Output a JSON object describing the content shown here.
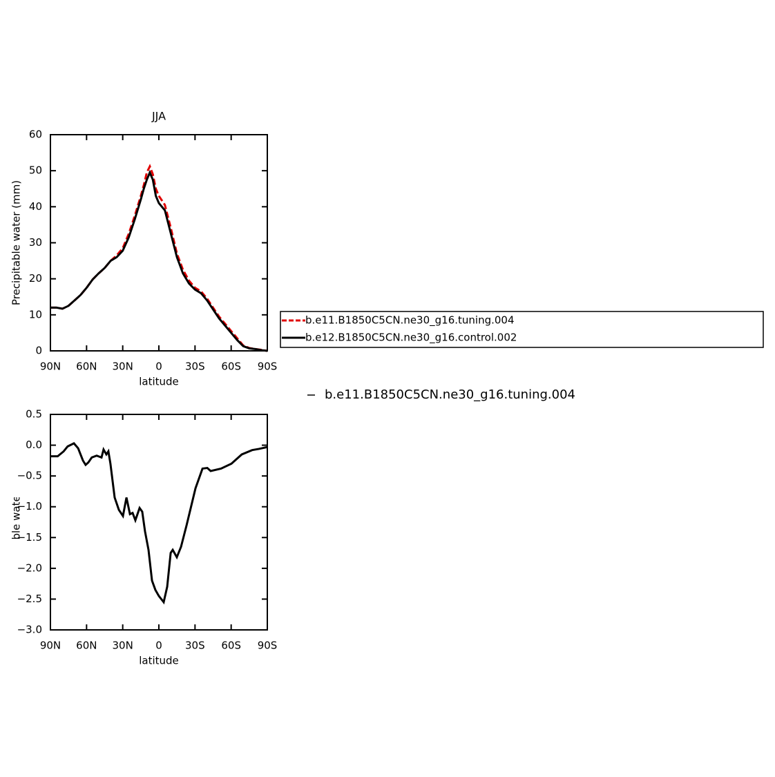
{
  "chart_data": [
    {
      "type": "line",
      "title": "JJA",
      "x_label": "latitude",
      "y_label": "Precipitable water (mm)",
      "x": [
        90,
        85,
        80,
        75,
        70,
        65,
        60,
        55,
        50,
        45,
        40,
        35,
        30,
        25,
        20,
        15,
        12.5,
        10,
        7.5,
        5,
        2.5,
        0,
        -5,
        -10,
        -15,
        -20,
        -25,
        -30,
        -35,
        -40,
        -45,
        -50,
        -55,
        -60,
        -65,
        -70,
        -75,
        -80,
        -85,
        -90
      ],
      "series": [
        {
          "name": "b.e11.B1850C5CN.ne30_g16.tuning.004",
          "color": "#e00000",
          "dashed": true,
          "values": [
            12,
            12,
            11.7,
            12.5,
            14,
            15.5,
            17.5,
            19.8,
            21.5,
            23,
            25,
            26.5,
            28.5,
            32.5,
            37.5,
            43,
            46,
            49.5,
            51.2,
            49,
            45,
            43,
            40.5,
            34,
            27,
            22.5,
            19.5,
            17.5,
            16.5,
            14.5,
            12,
            9.5,
            7.5,
            5.5,
            3.5,
            1.5,
            0.8,
            0.5,
            0.3,
            0
          ]
        },
        {
          "name": "b.e12.B1850C5CN.ne30_g16.control.002",
          "color": "#000000",
          "dashed": false,
          "values": [
            12,
            12,
            11.7,
            12.5,
            14,
            15.5,
            17.5,
            19.8,
            21.5,
            23,
            25,
            26,
            27.8,
            31.5,
            36.5,
            42,
            45,
            47.5,
            49.5,
            47.5,
            43,
            41,
            39,
            32.5,
            26,
            21.5,
            18.7,
            17,
            16,
            14,
            11.5,
            9,
            7,
            5,
            3,
            1.3,
            0.7,
            0.5,
            0.2,
            0
          ]
        }
      ],
      "xlim": [
        90,
        -90
      ],
      "xticks": [
        {
          "value": 90,
          "label": "90N"
        },
        {
          "value": 60,
          "label": "60N"
        },
        {
          "value": 30,
          "label": "30N"
        },
        0,
        {
          "value": -30,
          "label": "30S"
        },
        {
          "value": -60,
          "label": "60S"
        },
        {
          "value": -90,
          "label": "90S"
        }
      ],
      "ylim": [
        0,
        60
      ],
      "yticks": [
        0,
        10,
        20,
        30,
        40,
        50,
        60
      ]
    },
    {
      "type": "line",
      "x_label": "latitude",
      "y_label": "Precipitable water (mm)",
      "x": [
        90,
        87,
        84,
        79,
        75.7,
        70.5,
        67,
        63,
        60.8,
        58.5,
        55.7,
        51.6,
        47.6,
        45.9,
        43.6,
        41.9,
        40.2,
        36.7,
        33.2,
        29.8,
        26.9,
        24,
        21.8,
        19.5,
        16,
        13.8,
        11.5,
        8.6,
        5.7,
        2.9,
        0,
        -4,
        -6.9,
        -9.8,
        -11.5,
        -14.9,
        -18.4,
        -23,
        -30.4,
        -36.2,
        -40.2,
        -43,
        -51.6,
        -60.2,
        -68.8,
        -77.4,
        -83.1,
        -90
      ],
      "series": [
        {
          "name": "b.e11.B1850C5CN.ne30_g16.tuning.004",
          "color": "#000000",
          "dashed": false,
          "values": [
            -0.18,
            -0.18,
            -0.18,
            -0.1,
            -0.02,
            0.03,
            -0.05,
            -0.25,
            -0.32,
            -0.28,
            -0.2,
            -0.17,
            -0.2,
            -0.07,
            -0.15,
            -0.1,
            -0.3,
            -0.85,
            -1.05,
            -1.15,
            -0.85,
            -1.12,
            -1.1,
            -1.22,
            -1.02,
            -1.08,
            -1.4,
            -1.7,
            -2.2,
            -2.35,
            -2.45,
            -2.55,
            -2.3,
            -1.75,
            -1.7,
            -1.82,
            -1.65,
            -1.3,
            -0.7,
            -0.38,
            -0.37,
            -0.42,
            -0.38,
            -0.3,
            -0.15,
            -0.08,
            -0.06,
            -0.03
          ]
        }
      ],
      "xlim": [
        90,
        -90
      ],
      "xticks": [
        {
          "value": 90,
          "label": "90N"
        },
        {
          "value": 60,
          "label": "60N"
        },
        {
          "value": 30,
          "label": "30N"
        },
        0,
        {
          "value": -30,
          "label": "30S"
        },
        {
          "value": -60,
          "label": "60S"
        },
        {
          "value": -90,
          "label": "90S"
        }
      ],
      "ylim": [
        -3,
        0.5
      ],
      "yticks": [
        {
          "value": -3,
          "label": "−3.0"
        },
        {
          "value": -2.5,
          "label": "−2.5"
        },
        {
          "value": -2,
          "label": "−2.0"
        },
        {
          "value": -1.5,
          "label": "−1.5"
        },
        {
          "value": -1,
          "label": "−1.0"
        },
        {
          "value": -0.5,
          "label": "−0.5"
        },
        {
          "value": 0,
          "label": "0.0"
        },
        0.5
      ]
    }
  ]
}
